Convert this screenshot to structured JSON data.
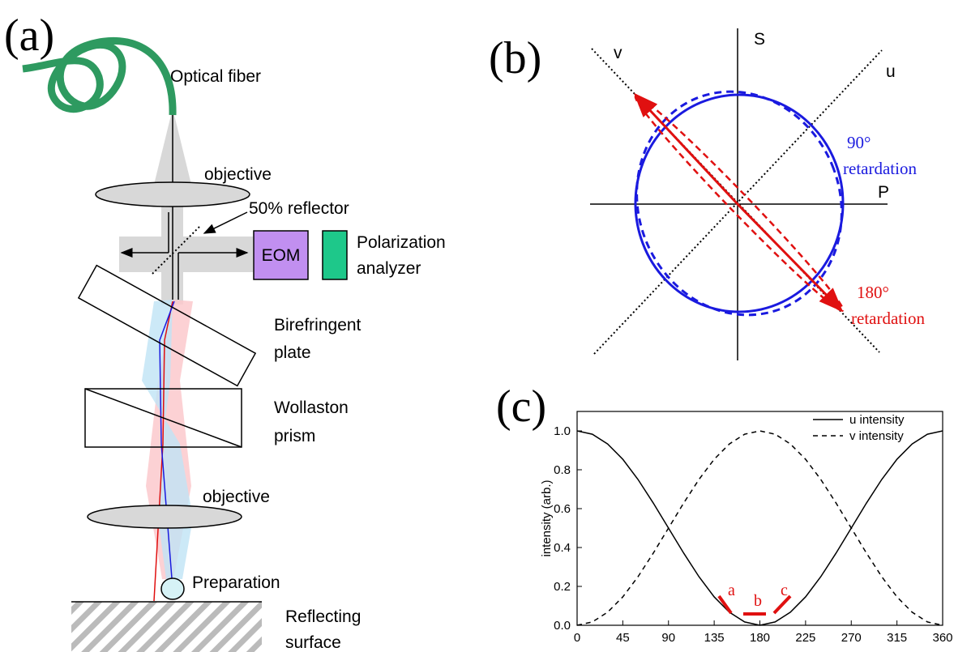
{
  "panel_a": {
    "label": "(a)",
    "fiber": "Optical fiber",
    "objective_top": "objective",
    "reflector": "50% reflector",
    "eom": "EOM",
    "analyzer": [
      "Polarization",
      "analyzer"
    ],
    "plate": [
      "Birefringent",
      "plate"
    ],
    "prism": [
      "Wollaston",
      "prism"
    ],
    "objective_bottom": "objective",
    "preparation": "Preparation",
    "surface": [
      "Reflecting",
      "surface"
    ]
  },
  "panel_b": {
    "label": "(b)",
    "axes": {
      "s": "S",
      "p": "P",
      "u": "u",
      "v": "v"
    },
    "blue_note": [
      "90°",
      "retardation"
    ],
    "red_note": [
      "180°",
      "retardation"
    ]
  },
  "chart_data": {
    "type": "line",
    "label": "(c)",
    "ylabel": "intensity (arb.)",
    "x": [
      0,
      15,
      30,
      45,
      60,
      75,
      90,
      105,
      120,
      135,
      150,
      165,
      180,
      195,
      210,
      225,
      240,
      255,
      270,
      285,
      300,
      315,
      330,
      345,
      360
    ],
    "series": [
      {
        "name": "u intensity",
        "color": "#000000",
        "dashed": false,
        "values": [
          1,
          0.983,
          0.933,
          0.854,
          0.75,
          0.629,
          0.5,
          0.371,
          0.25,
          0.146,
          0.067,
          0.017,
          0,
          0.017,
          0.067,
          0.146,
          0.25,
          0.371,
          0.5,
          0.629,
          0.75,
          0.854,
          0.933,
          0.983,
          1
        ]
      },
      {
        "name": "v intensity",
        "color": "#000000",
        "dashed": true,
        "values": [
          0,
          0.017,
          0.067,
          0.146,
          0.25,
          0.371,
          0.5,
          0.629,
          0.75,
          0.854,
          0.933,
          0.983,
          1,
          0.983,
          0.933,
          0.854,
          0.75,
          0.629,
          0.5,
          0.371,
          0.25,
          0.146,
          0.067,
          0.017,
          0
        ]
      }
    ],
    "xlim": [
      0,
      360
    ],
    "ylim": [
      0,
      1.1
    ],
    "xticks": [
      0,
      45,
      90,
      135,
      180,
      225,
      270,
      315,
      360
    ],
    "yticks": [
      {
        "value": 0,
        "label": "0.0"
      },
      {
        "value": 0.2,
        "label": "0.2"
      },
      {
        "value": 0.4,
        "label": "0.4"
      },
      {
        "value": 0.6,
        "label": "0.6"
      },
      {
        "value": 0.8,
        "label": "0.8"
      },
      {
        "value": 1,
        "label": "1.0"
      }
    ],
    "annotations": [
      "a",
      "b",
      "c"
    ],
    "annotation_color": "#e01010",
    "legend": "upper right"
  }
}
